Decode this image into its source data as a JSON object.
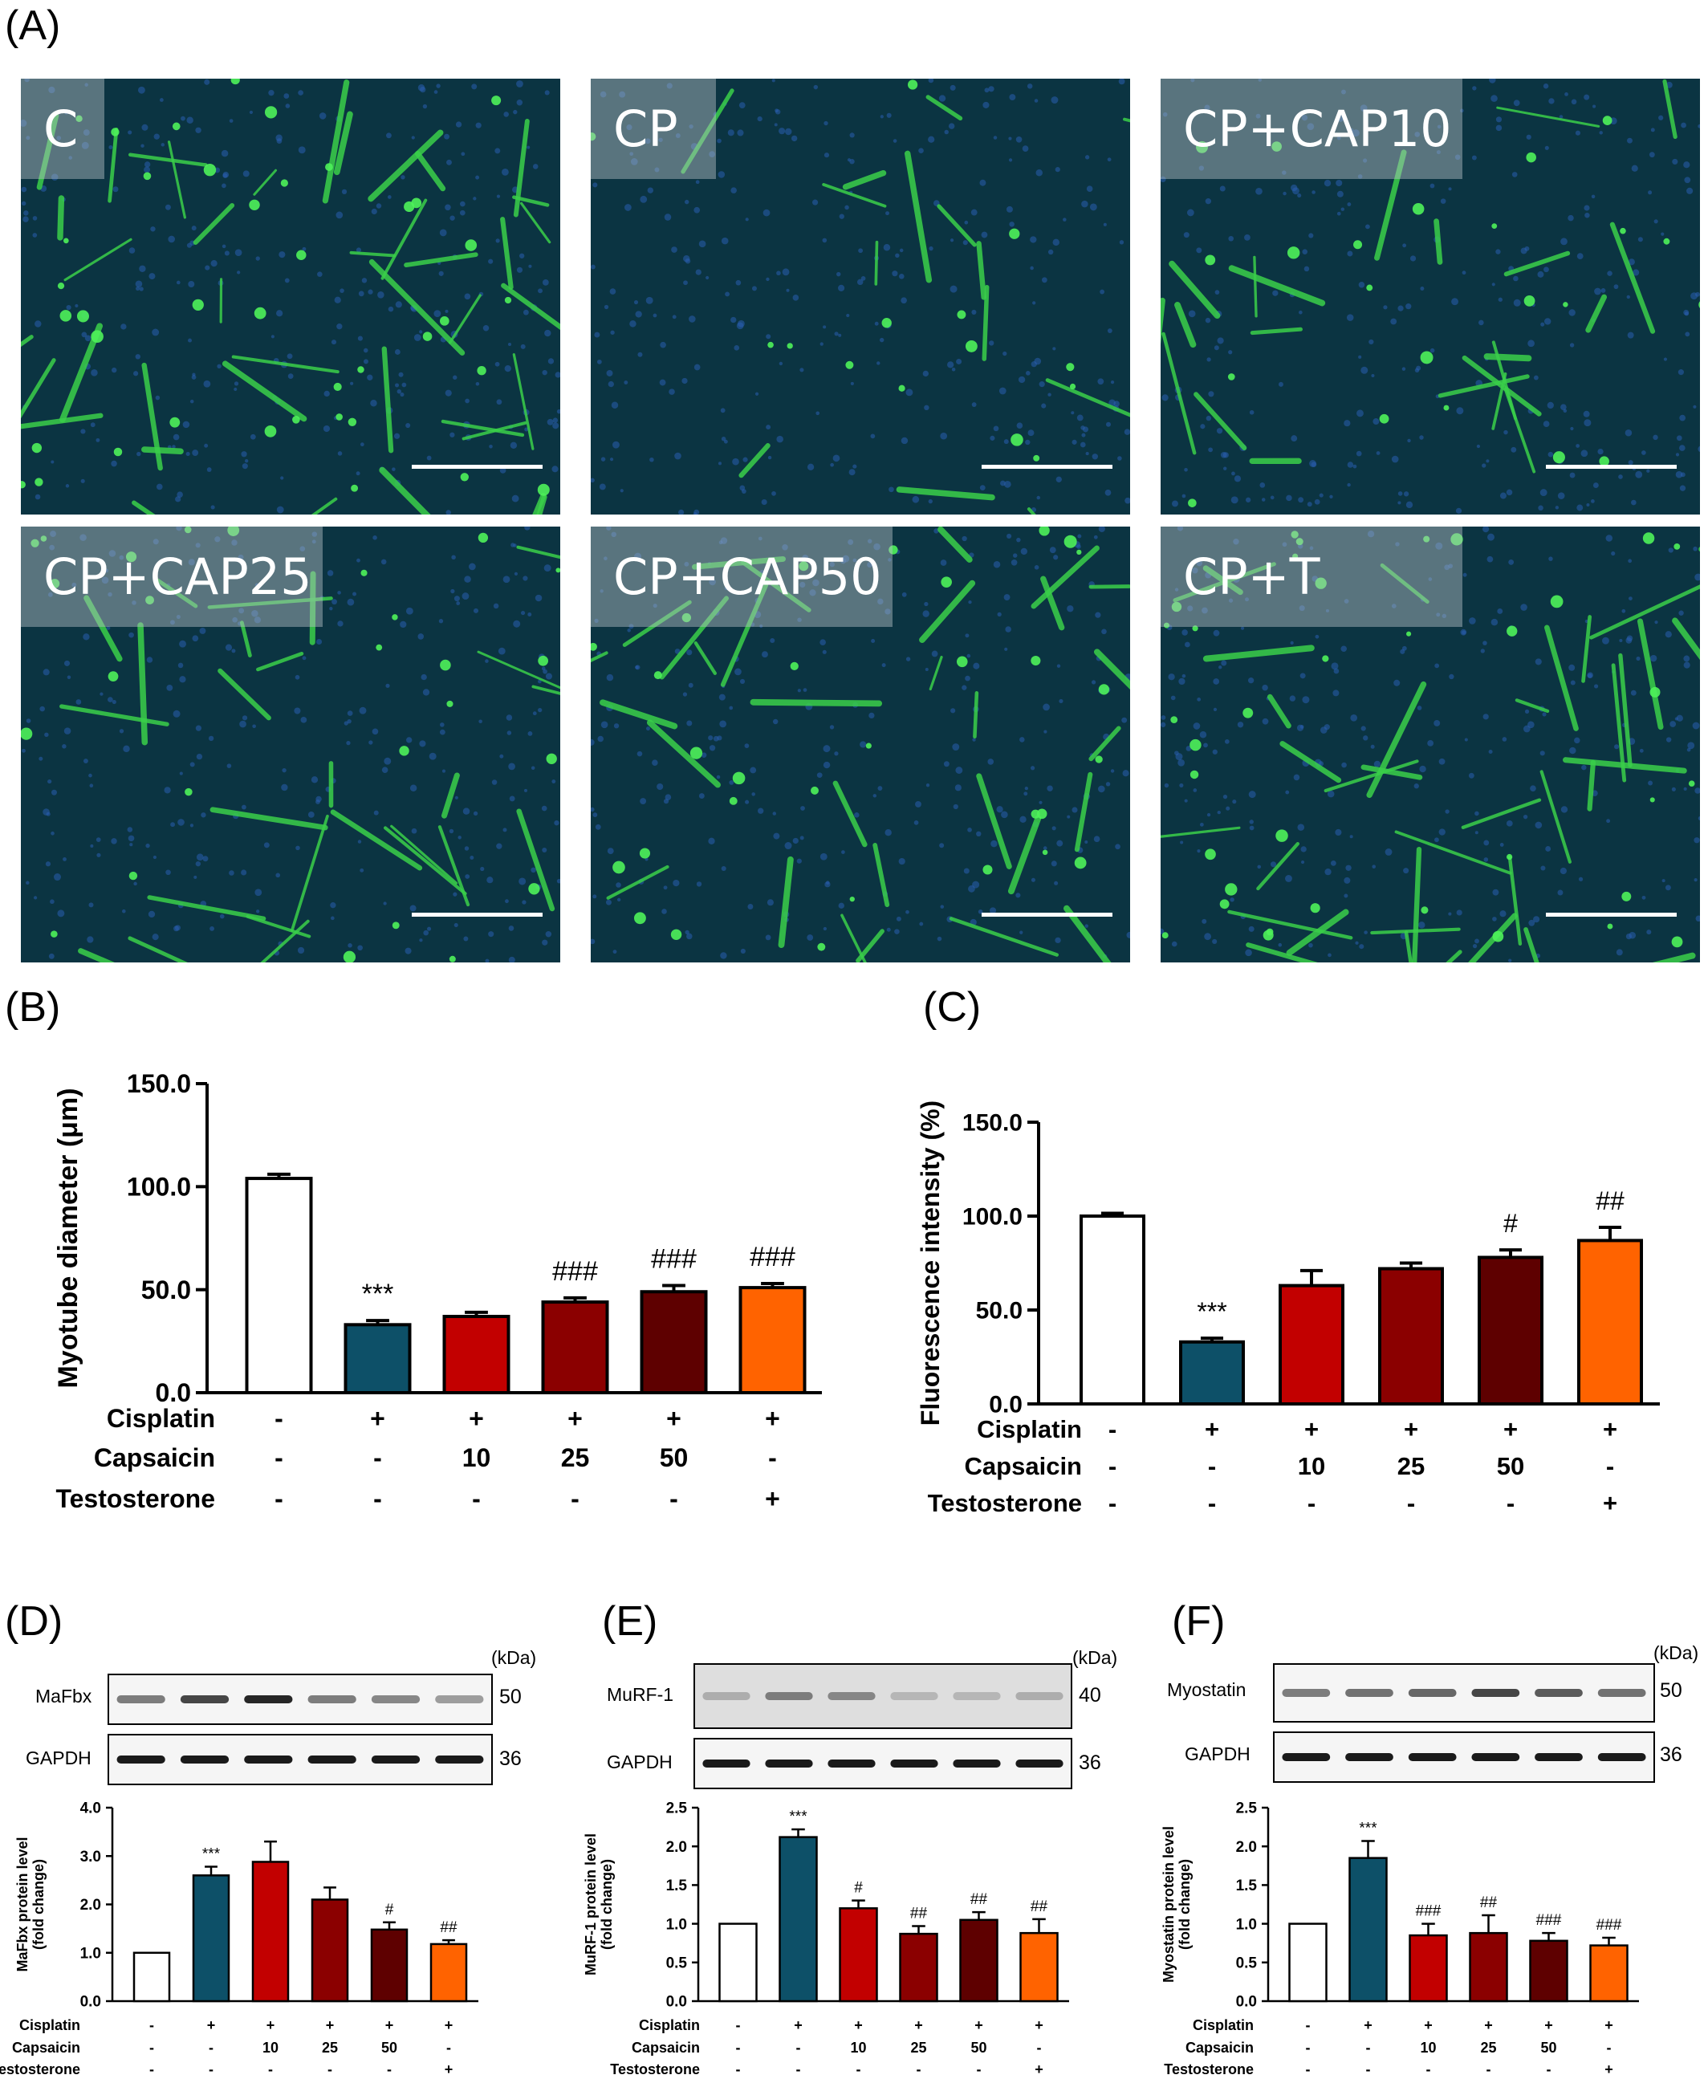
{
  "panel_labels": {
    "A": "(A)",
    "B": "(B)",
    "C": "(C)",
    "D": "(D)",
    "E": "(E)",
    "F": "(F)"
  },
  "micrographs": [
    {
      "label": "C"
    },
    {
      "label": "CP"
    },
    {
      "label": "CP+CAP10"
    },
    {
      "label": "CP+CAP25"
    },
    {
      "label": "CP+CAP50"
    },
    {
      "label": "CP+T"
    }
  ],
  "colors": {
    "control": "#ffffff",
    "cp": "#0d5068",
    "cap10": "#c20000",
    "cap25": "#8b0000",
    "cap50": "#5e0000",
    "t": "#ff6300"
  },
  "treatment_rows": {
    "names": [
      "Cisplatin",
      "Capsaicin",
      "Testosterone"
    ],
    "cisplatin": [
      "-",
      "+",
      "+",
      "+",
      "+",
      "+"
    ],
    "capsaicin": [
      "-",
      "-",
      "10",
      "25",
      "50",
      "-"
    ],
    "testosterone": [
      "-",
      "-",
      "-",
      "-",
      "-",
      "+"
    ]
  },
  "chart_data": [
    {
      "type": "bar",
      "panel": "B",
      "ylabel": "Myotube diameter (μm)",
      "ylim": [
        0,
        150
      ],
      "yticks": [
        "0.0",
        "50.0",
        "100.0",
        "150.0"
      ],
      "values": [
        104,
        33,
        37,
        44,
        49,
        51
      ],
      "errors": [
        2,
        2,
        2,
        2,
        3,
        2
      ],
      "annotations": [
        "",
        "***",
        "",
        "###",
        "###",
        "###"
      ]
    },
    {
      "type": "bar",
      "panel": "C",
      "ylabel": "Fluorescence intensity (%)",
      "ylim": [
        0,
        150
      ],
      "yticks": [
        "0.0",
        "50.0",
        "100.0",
        "150.0"
      ],
      "values": [
        100,
        33,
        63,
        72,
        78,
        87
      ],
      "errors": [
        1.5,
        2,
        8,
        3,
        4,
        7
      ],
      "annotations": [
        "",
        "***",
        "",
        "",
        "#",
        "##"
      ]
    },
    {
      "type": "bar",
      "panel": "D",
      "ylabel_lines": [
        "MaFbx protein level",
        "(fold change)"
      ],
      "ylim": [
        0,
        4
      ],
      "yticks": [
        "0.0",
        "1.0",
        "2.0",
        "3.0",
        "4.0"
      ],
      "values": [
        1.0,
        2.6,
        2.88,
        2.1,
        1.48,
        1.18
      ],
      "errors": [
        0,
        0.18,
        0.42,
        0.25,
        0.15,
        0.08
      ],
      "annotations": [
        "",
        "***",
        "",
        "",
        "#",
        "##"
      ]
    },
    {
      "type": "bar",
      "panel": "E",
      "ylabel_lines": [
        "MuRF-1 protein level",
        "(fold change)"
      ],
      "ylim": [
        0,
        2.5
      ],
      "yticks": [
        "0.0",
        "0.5",
        "1.0",
        "1.5",
        "2.0",
        "2.5"
      ],
      "values": [
        1.0,
        2.12,
        1.2,
        0.87,
        1.05,
        0.88
      ],
      "errors": [
        0,
        0.1,
        0.1,
        0.1,
        0.1,
        0.18
      ],
      "annotations": [
        "",
        "***",
        "#",
        "##",
        "##",
        "##"
      ]
    },
    {
      "type": "bar",
      "panel": "F",
      "ylabel_lines": [
        "Myostatin protein level",
        "(fold change)"
      ],
      "ylim": [
        0,
        2.5
      ],
      "yticks": [
        "0.0",
        "0.5",
        "1.0",
        "1.5",
        "2.0",
        "2.5"
      ],
      "values": [
        1.0,
        1.85,
        0.85,
        0.88,
        0.78,
        0.72
      ],
      "errors": [
        0,
        0.22,
        0.15,
        0.23,
        0.1,
        0.1
      ],
      "annotations": [
        "",
        "***",
        "###",
        "##",
        "###",
        "###"
      ]
    }
  ],
  "blots": {
    "D": {
      "protein": "MaFbx",
      "protein_kda": "50",
      "loading": "GAPDH",
      "loading_kda": "36",
      "unit": "(kDa)"
    },
    "E": {
      "protein": "MuRF-1",
      "protein_kda": "40",
      "loading": "GAPDH",
      "loading_kda": "36",
      "unit": "(kDa)"
    },
    "F": {
      "protein": "Myostatin",
      "protein_kda": "50",
      "loading": "GAPDH",
      "loading_kda": "36",
      "unit": "(kDa)"
    }
  }
}
